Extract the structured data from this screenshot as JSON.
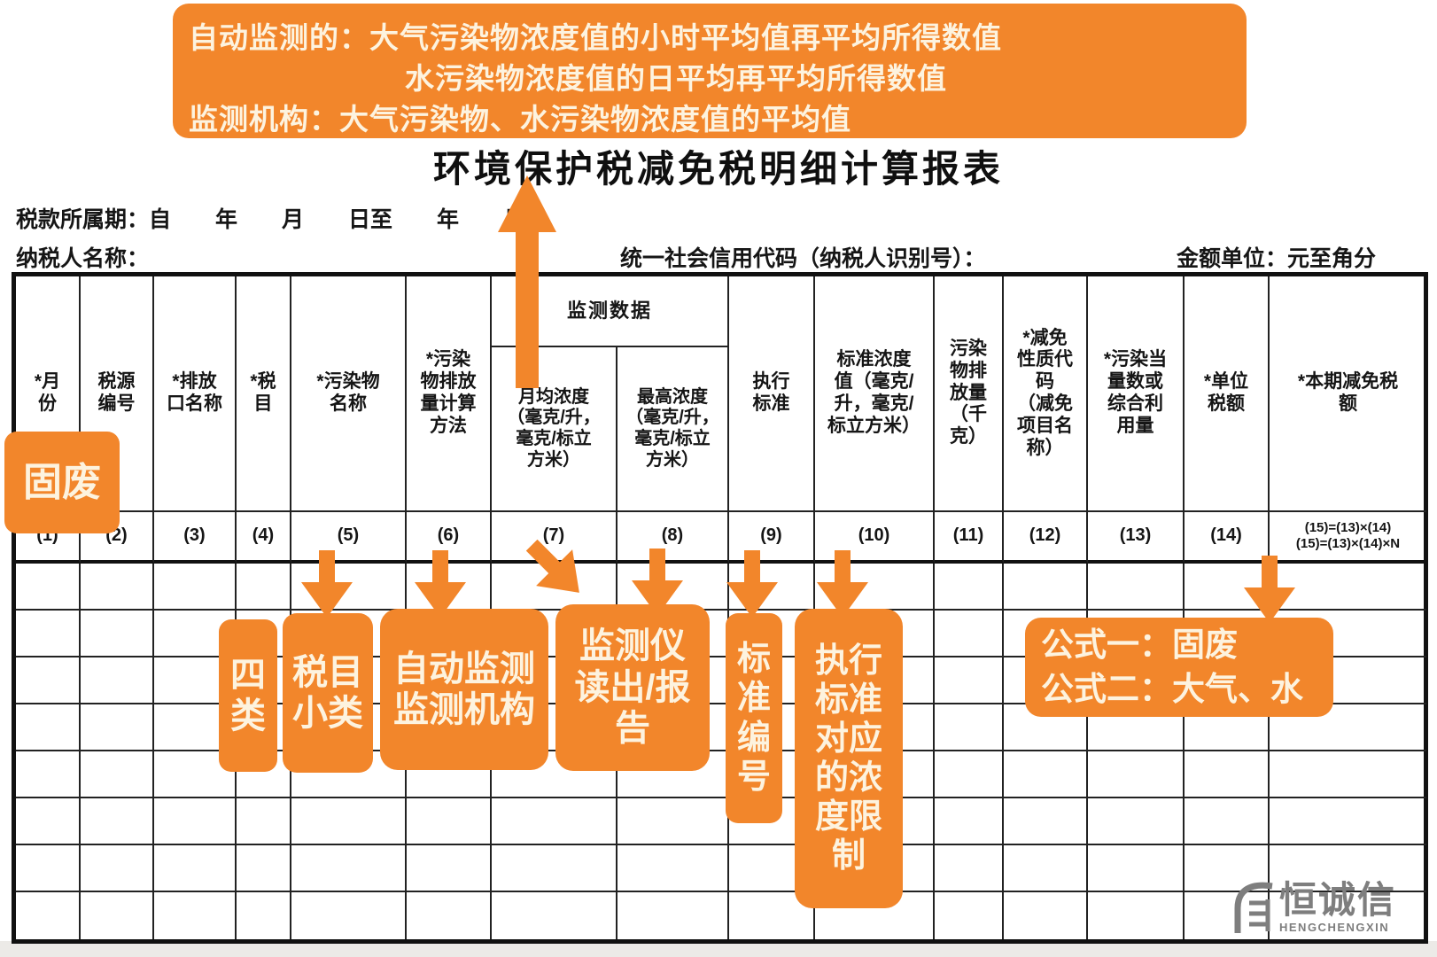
{
  "banner": {
    "lines": [
      "自动监测的：大气污染物浓度值的小时平均值再平均所得数值",
      "水污染物浓度值的日平均再平均所得数值",
      "监测机构：大气污染物、水污染物浓度值的平均值"
    ]
  },
  "title": "环境保护税减免税明细计算报表",
  "form": {
    "period": "税款所属期：自　　年　　月　　日至　　年　　月",
    "taxpayer": "纳税人名称：",
    "credit_code": "统一社会信用代码（纳税人识别号）：",
    "amount_unit": "金额单位：元至角分"
  },
  "table": {
    "group_header": "监测数据",
    "columns": [
      {
        "label": "*月\n份",
        "num": "(1)"
      },
      {
        "label": "税源\n编号",
        "num": "(2)"
      },
      {
        "label": "*排放\n口名称",
        "num": "(3)"
      },
      {
        "label": "*税\n目",
        "num": "(4)"
      },
      {
        "label": "*污染物\n名称",
        "num": "(5)"
      },
      {
        "label": "*污染\n物排放\n量计算\n方法",
        "num": "(6)"
      },
      {
        "label": "月均浓度\n（毫克/升，\n毫克/标立\n方米）",
        "num": "(7)"
      },
      {
        "label": "最高浓度\n（毫克/升，\n毫克/标立\n方米）",
        "num": "(8)"
      },
      {
        "label": "执行\n标准",
        "num": "(9)"
      },
      {
        "label": "标准浓度\n值（毫克/\n升，毫克/\n标立方米）",
        "num": "(10)"
      },
      {
        "label": "污染\n物排\n放量\n（千\n克）",
        "num": "(11)"
      },
      {
        "label": "*减免\n性质代\n码\n（减免\n项目名\n称）",
        "num": "(12)"
      },
      {
        "label": "*污染当\n量数或\n综合利\n用量",
        "num": "(13)"
      },
      {
        "label": "*单位\n税额",
        "num": "(14)"
      },
      {
        "label": "*本期减免税\n额",
        "num": "(15)=(13)×(14)\n(15)=(13)×(14)×N"
      }
    ],
    "data_row_count": 8
  },
  "callouts": {
    "solid_waste": "固废",
    "four_types": "四\n类",
    "tax_subcategory": "税目\n小类",
    "auto_monitor": "自动监测\n监测机构",
    "monitor_readout": "监测仪\n读出/报\n告",
    "standard_no": "标\n准\n编\n号",
    "standard_limit": "执行\n标准\n对应\n的浓\n度限\n制",
    "formulas": "公式一：固废\n公式二：大气、水"
  },
  "watermark": {
    "name": "恒诚信",
    "sub": "HENGCHENGXIN"
  },
  "colors": {
    "accent_orange": "#F2862B",
    "callout_text": "#FDF3DF",
    "grid_line": "#222222",
    "watermark_gray": "#7e7e7e"
  }
}
